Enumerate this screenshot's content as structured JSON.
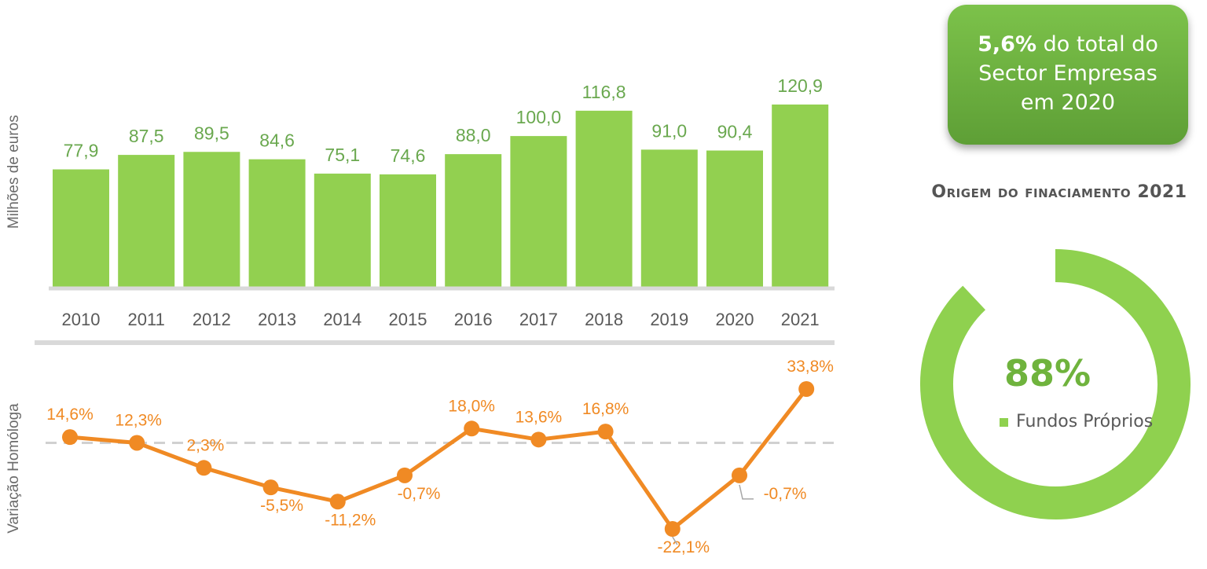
{
  "chart_data": [
    {
      "type": "bar",
      "ylabel": "Milhões de euros",
      "categories": [
        "2010",
        "2011",
        "2012",
        "2013",
        "2014",
        "2015",
        "2016",
        "2017",
        "2018",
        "2019",
        "2020",
        "2021"
      ],
      "values": [
        77.9,
        87.5,
        89.5,
        84.6,
        75.1,
        74.6,
        88.0,
        100.0,
        116.8,
        91.0,
        90.4,
        120.9
      ],
      "data_labels": [
        "77,9",
        "87,5",
        "89,5",
        "84,6",
        "75,1",
        "74,6",
        "88,0",
        "100,0",
        "116,8",
        "91,0",
        "90,4",
        "120,9"
      ],
      "ylim": [
        0,
        125
      ],
      "grid": false,
      "colors": {
        "bar": "#92d050",
        "label": "#6aa84f",
        "axis": "#d9d9d9",
        "tick": "#595959"
      }
    },
    {
      "type": "line",
      "ylabel": "Variação Homóloga",
      "categories": [
        "2010",
        "2011",
        "2012",
        "2013",
        "2014",
        "2015",
        "2016",
        "2017",
        "2018",
        "2019",
        "2020",
        "2021"
      ],
      "values": [
        14.6,
        12.3,
        2.3,
        -5.5,
        -11.2,
        -0.7,
        18.0,
        13.6,
        16.8,
        -22.1,
        -0.7,
        33.8
      ],
      "data_labels": [
        "14,6%",
        "12,3%",
        "2,3%",
        "-5,5%",
        "-11,2%",
        "-0,7%",
        "18,0%",
        "13,6%",
        "16,8%",
        "-22,1%",
        "-0,7%",
        "33,8%"
      ],
      "reference_line": 12.3,
      "ylim": [
        -22.1,
        33.8
      ],
      "colors": {
        "line": "#f08a24",
        "label": "#f08a24",
        "reference": "#d0d0d0"
      }
    },
    {
      "type": "pie",
      "title": "Origem do finaciamento 2021",
      "slices": [
        {
          "name": "Fundos Próprios",
          "value": 88,
          "label": "88%"
        }
      ],
      "colors": {
        "ring": "#8fd14f",
        "value_text": "#6fb33d"
      }
    }
  ],
  "callout": {
    "highlight": "5,6%",
    "line1_rest": " do total do",
    "line2": "Sector  Empresas",
    "line3": "em 2020"
  }
}
